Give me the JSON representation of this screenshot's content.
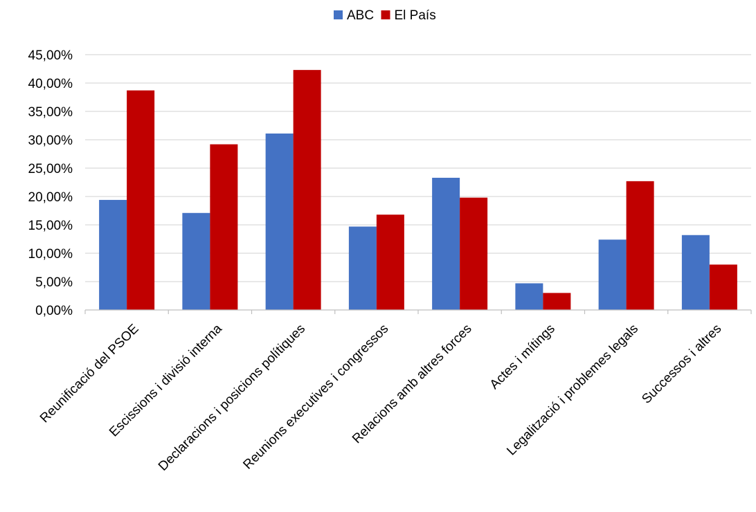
{
  "chart_data": {
    "type": "bar",
    "categories": [
      "Reunificació del PSOE",
      "Escissions i divisió interna",
      "Declaracions i posicions polítiques",
      "Reunions executives i congressos",
      "Relacions amb altres forces",
      "Actes i mítings",
      "Legalització i problemes legals",
      "Successos i altres"
    ],
    "series": [
      {
        "name": "ABC",
        "color": "#4472C4",
        "values": [
          19.4,
          17.1,
          31.1,
          14.7,
          23.3,
          4.7,
          12.4,
          13.2
        ]
      },
      {
        "name": "El País",
        "color": "#C00000",
        "values": [
          38.7,
          29.2,
          42.3,
          16.8,
          19.8,
          3.0,
          22.7,
          8.0
        ]
      }
    ],
    "y_ticks": [
      "0,00%",
      "5,00%",
      "10,00%",
      "15,00%",
      "20,00%",
      "25,00%",
      "30,00%",
      "35,00%",
      "40,00%",
      "45,00%"
    ],
    "ylim": [
      0,
      45
    ],
    "y_step": 5,
    "grid": true,
    "legend_position": "top-center"
  }
}
